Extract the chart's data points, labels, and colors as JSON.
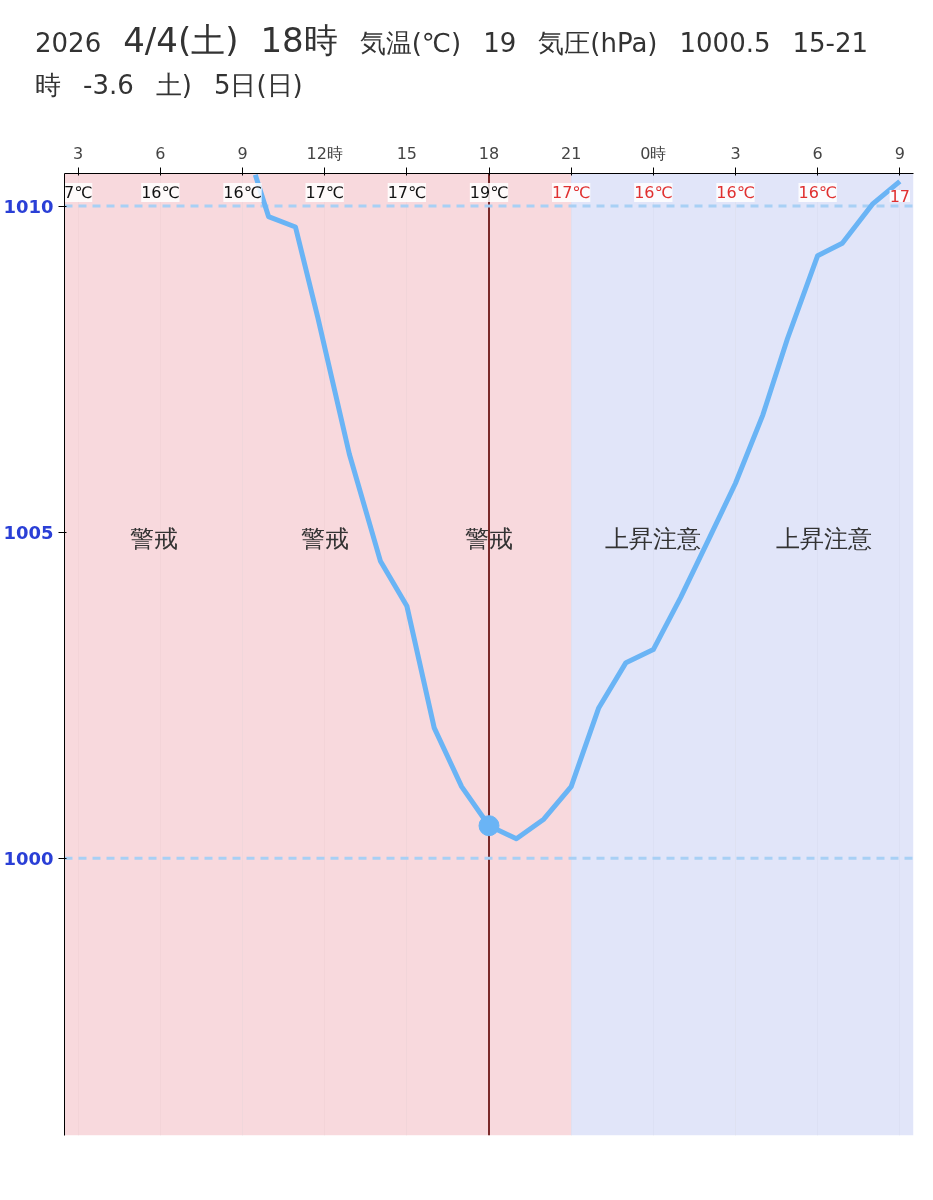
{
  "chart_data": {
    "type": "line",
    "annotations": [
      "2026",
      "4/4(土)",
      "18時",
      "気温(℃)",
      "19",
      "気圧(hPa)",
      "1000.5",
      "15-21時",
      "-3.6",
      {
        "text": "7℃",
        "x": "2026-04-04T03:00",
        "y": 1010
      },
      {
        "text": "16℃",
        "x": "2026-04-04T06:00",
        "y": 1010
      },
      {
        "text": "16℃",
        "x": "2026-04-04T09:00",
        "y": 1010
      },
      {
        "text": "17℃",
        "x": "2026-04-04T12:00",
        "y": 1010
      },
      {
        "text": "17℃",
        "x": "2026-04-04T15:00",
        "y": 1010
      },
      {
        "text": "19℃",
        "x": "2026-04-04T18:00",
        "y": 1010
      },
      {
        "text": "17℃",
        "x": "2026-04-04T21:00",
        "y": 1010
      },
      {
        "text": "16℃",
        "x": "2026-04-05T00:00",
        "y": 1010
      },
      {
        "text": "16℃",
        "x": "2026-04-05T03:00",
        "y": 1010
      },
      {
        "text": "16℃",
        "x": "2026-04-05T06:00",
        "y": 1010
      },
      {
        "text": "17",
        "x": "2026-04-05T09:00",
        "y": 1010
      },
      "土)",
      "5日(日)"
    ],
    "x": [
      "2026-04-04T09:28",
      "2026-04-04T09:57",
      "2026-04-04T10:56",
      "2026-04-04T11:45",
      "2026-04-04T12:54",
      "2026-04-04T14:02",
      "2026-04-04T15:00",
      "2026-04-04T16:00",
      "2026-04-04T17:00",
      "2026-04-04T18:00",
      "2026-04-04T19:00",
      "2026-04-04T20:00",
      "2026-04-04T21:00",
      "2026-04-04T22:00",
      "2026-04-04T23:00",
      "2026-04-05T00:00",
      "2026-04-05T01:00",
      "2026-04-05T02:00",
      "2026-04-05T03:00",
      "2026-04-05T04:00",
      "2026-04-05T04:54",
      "2026-04-05T06:00",
      "2026-04-05T06:54",
      "2026-04-05T08:00",
      "2026-04-05T09:00"
    ],
    "series": [
      {
        "type": "line",
        "color": "#6ab4f5",
        "values": [
          1010.48,
          1009.84,
          1009.68,
          1008.29,
          1006.2,
          1004.56,
          1003.87,
          1002.0,
          1001.1,
          1000.5,
          1000.3,
          1000.6,
          1001.1,
          1002.3,
          1003.0,
          1003.2,
          1004.0,
          1004.87,
          1005.75,
          1006.8,
          1007.97,
          1009.24,
          1009.43,
          1010.03,
          1010.38
        ]
      },
      {
        "type": "scatter",
        "color": "#6ab4f5",
        "marker": "circle",
        "x": [
          "2026-04-04T18:00"
        ],
        "values": [
          1000.5
        ]
      }
    ],
    "xlim": [
      "2026-04-04T02:30",
      "2026-04-05T09:30"
    ],
    "xticks": [
      {
        "value": "2026-04-04T03:00",
        "label": "3"
      },
      {
        "value": "2026-04-04T06:00",
        "label": "6"
      },
      {
        "value": "2026-04-04T09:00",
        "label": "9"
      },
      {
        "value": "2026-04-04T12:00",
        "label": "12時"
      },
      {
        "value": "2026-04-04T15:00",
        "label": "15"
      },
      {
        "value": "2026-04-04T18:00",
        "label": "18"
      },
      {
        "value": "2026-04-04T21:00",
        "label": "21"
      },
      {
        "value": "2026-04-05T00:00",
        "label": "0時"
      },
      {
        "value": "2026-04-05T03:00",
        "label": "3"
      },
      {
        "value": "2026-04-05T06:00",
        "label": "6"
      },
      {
        "value": "2026-04-05T09:00",
        "label": "9"
      }
    ],
    "ylim": [
      995.75,
      1010.5
    ],
    "yticks": [
      1000,
      1005,
      1010
    ],
    "ref_lines": [
      {
        "axis": "x",
        "value": "2026-04-04T18:00",
        "label": null,
        "color": "#7a2a2a",
        "line_style": "solid"
      },
      {
        "axis": "y",
        "value": 1010,
        "label": null,
        "color": "#a8d0f5",
        "line_style": "dashed"
      },
      {
        "axis": "y",
        "value": 1000,
        "label": null,
        "color": "#a8d0f5",
        "line_style": "dashed"
      }
    ],
    "bands": [
      {
        "axis": "x",
        "from": "2026-04-04T02:30",
        "to": "2026-04-04T09:00",
        "label": "警戒",
        "color": "#f6cfd4"
      },
      {
        "axis": "x",
        "from": "2026-04-04T09:00",
        "to": "2026-04-04T15:00",
        "label": "警戒",
        "color": "#f6cfd4"
      },
      {
        "axis": "x",
        "from": "2026-04-04T15:00",
        "to": "2026-04-04T21:00",
        "label": "警戒",
        "color": "#f6cfd4"
      },
      {
        "axis": "x",
        "from": "2026-04-04T21:00",
        "to": "2026-04-05T03:00",
        "label": "上昇注意",
        "color": "#d9def8"
      },
      {
        "axis": "x",
        "from": "2026-04-05T03:00",
        "to": "2026-04-05T09:30",
        "label": "上昇注意",
        "color": "#d9def8"
      }
    ],
    "grid": "x",
    "line_style": "solid",
    "marker": "none"
  }
}
